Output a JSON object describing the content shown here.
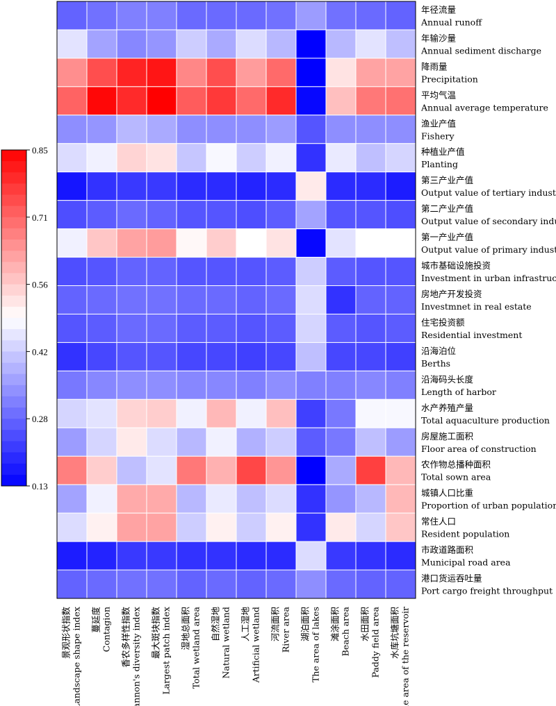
{
  "chart_data": {
    "type": "heatmap",
    "colormap": {
      "low": "#0000ff",
      "mid": "#ffffff",
      "high": "#ff0000"
    },
    "colorbar": {
      "ticks": [
        "0.85",
        "0.71",
        "0.56",
        "0.42",
        "0.28",
        "0.13"
      ],
      "min": 0.13,
      "max": 0.85,
      "mid": 0.49
    },
    "rows": [
      {
        "zh": "年径流量",
        "en": "Annual runoff"
      },
      {
        "zh": "年输沙量",
        "en": "Annual sediment discharge"
      },
      {
        "zh": "降雨量",
        "en": "Precipitation"
      },
      {
        "zh": "平均气温",
        "en": "Annual average temperature"
      },
      {
        "zh": "渔业产值",
        "en": "Fishery"
      },
      {
        "zh": "种植业产值",
        "en": "Planting"
      },
      {
        "zh": "第三产业产值",
        "en": "Output value of tertiary industry"
      },
      {
        "zh": "第二产业产值",
        "en": "Output value of secondary industry"
      },
      {
        "zh": "第一产业产值",
        "en": "Output value of primary industry"
      },
      {
        "zh": "城市基础设施投资",
        "en": "Investment in urban infrastructure"
      },
      {
        "zh": "房地产开发投资",
        "en": "Investmnet in real estate"
      },
      {
        "zh": "住宅投资额",
        "en": "Residential investment"
      },
      {
        "zh": "沿海泊位",
        "en": "Berths"
      },
      {
        "zh": "沿海码头长度",
        "en": "Length of harbor"
      },
      {
        "zh": "水产养殖产量",
        "en": "Total aquaculture production"
      },
      {
        "zh": "房屋施工面积",
        "en": "Floor area of construction"
      },
      {
        "zh": "农作物总播种面积",
        "en": "Total sown area"
      },
      {
        "zh": "城镇人口比重",
        "en": "Proportion of urban population"
      },
      {
        "zh": "常住人口",
        "en": "Resident population"
      },
      {
        "zh": "市政道路面积",
        "en": "Municipal road area"
      },
      {
        "zh": "港口货运吞吐量",
        "en": "Port cargo freight throughput"
      }
    ],
    "columns": [
      {
        "zh": "景观形状指数",
        "en": "Landscape shape index"
      },
      {
        "zh": "蔓延度",
        "en": "Contagion"
      },
      {
        "zh": "香农多样性指数",
        "en": "Shannon's diversity index"
      },
      {
        "zh": "最大斑块指数",
        "en": "Largest patch index"
      },
      {
        "zh": "湿地总面积",
        "en": "Total wetland area"
      },
      {
        "zh": "自然湿地",
        "en": "Natural wetland"
      },
      {
        "zh": "人工湿地",
        "en": "Artificial wetland"
      },
      {
        "zh": "河流面积",
        "en": "River area"
      },
      {
        "zh": "湖泊面积",
        "en": "The area of lakes"
      },
      {
        "zh": "滩涂面积",
        "en": "Beach area"
      },
      {
        "zh": "水田面积",
        "en": "Paddy field area"
      },
      {
        "zh": "水库坑塘面积",
        "en": "The area of the reservoir"
      }
    ],
    "values": [
      [
        0.27,
        0.29,
        0.31,
        0.31,
        0.28,
        0.28,
        0.28,
        0.29,
        0.35,
        0.29,
        0.28,
        0.27
      ],
      [
        0.45,
        0.36,
        0.32,
        0.34,
        0.42,
        0.37,
        0.44,
        0.39,
        0.13,
        0.39,
        0.45,
        0.4
      ],
      [
        0.65,
        0.74,
        0.8,
        0.82,
        0.66,
        0.74,
        0.63,
        0.7,
        0.13,
        0.53,
        0.62,
        0.62
      ],
      [
        0.71,
        0.84,
        0.79,
        0.85,
        0.72,
        0.77,
        0.7,
        0.79,
        0.14,
        0.58,
        0.68,
        0.69
      ],
      [
        0.33,
        0.34,
        0.39,
        0.37,
        0.33,
        0.33,
        0.33,
        0.35,
        0.25,
        0.33,
        0.33,
        0.33
      ],
      [
        0.44,
        0.47,
        0.55,
        0.53,
        0.41,
        0.48,
        0.42,
        0.47,
        0.2,
        0.46,
        0.4,
        0.43
      ],
      [
        0.16,
        0.2,
        0.21,
        0.21,
        0.19,
        0.19,
        0.18,
        0.19,
        0.52,
        0.19,
        0.19,
        0.17
      ],
      [
        0.24,
        0.26,
        0.28,
        0.27,
        0.25,
        0.25,
        0.24,
        0.26,
        0.36,
        0.25,
        0.25,
        0.24
      ],
      [
        0.47,
        0.57,
        0.62,
        0.63,
        0.5,
        0.56,
        0.49,
        0.53,
        0.14,
        0.45,
        0.49,
        0.49
      ],
      [
        0.24,
        0.25,
        0.27,
        0.27,
        0.25,
        0.25,
        0.25,
        0.26,
        0.42,
        0.26,
        0.25,
        0.25
      ],
      [
        0.27,
        0.28,
        0.29,
        0.29,
        0.28,
        0.28,
        0.27,
        0.28,
        0.44,
        0.2,
        0.27,
        0.27
      ],
      [
        0.25,
        0.26,
        0.28,
        0.28,
        0.26,
        0.26,
        0.25,
        0.26,
        0.43,
        0.26,
        0.25,
        0.26
      ],
      [
        0.2,
        0.23,
        0.25,
        0.25,
        0.23,
        0.23,
        0.22,
        0.23,
        0.4,
        0.23,
        0.23,
        0.22
      ],
      [
        0.3,
        0.32,
        0.33,
        0.33,
        0.32,
        0.32,
        0.31,
        0.33,
        0.31,
        0.31,
        0.32,
        0.31
      ],
      [
        0.43,
        0.45,
        0.55,
        0.56,
        0.47,
        0.59,
        0.47,
        0.58,
        0.22,
        0.3,
        0.48,
        0.48
      ],
      [
        0.35,
        0.43,
        0.52,
        0.44,
        0.39,
        0.47,
        0.38,
        0.42,
        0.26,
        0.3,
        0.4,
        0.35
      ],
      [
        0.67,
        0.56,
        0.4,
        0.45,
        0.68,
        0.6,
        0.75,
        0.64,
        0.13,
        0.37,
        0.76,
        0.59
      ],
      [
        0.36,
        0.47,
        0.61,
        0.61,
        0.39,
        0.46,
        0.4,
        0.44,
        0.2,
        0.34,
        0.39,
        0.59
      ],
      [
        0.44,
        0.51,
        0.62,
        0.62,
        0.42,
        0.51,
        0.42,
        0.51,
        0.2,
        0.52,
        0.43,
        0.57
      ],
      [
        0.17,
        0.18,
        0.21,
        0.21,
        0.2,
        0.2,
        0.19,
        0.19,
        0.44,
        0.21,
        0.2,
        0.19
      ],
      [
        0.27,
        0.28,
        0.29,
        0.29,
        0.27,
        0.28,
        0.27,
        0.28,
        0.33,
        0.28,
        0.27,
        0.27
      ]
    ]
  }
}
